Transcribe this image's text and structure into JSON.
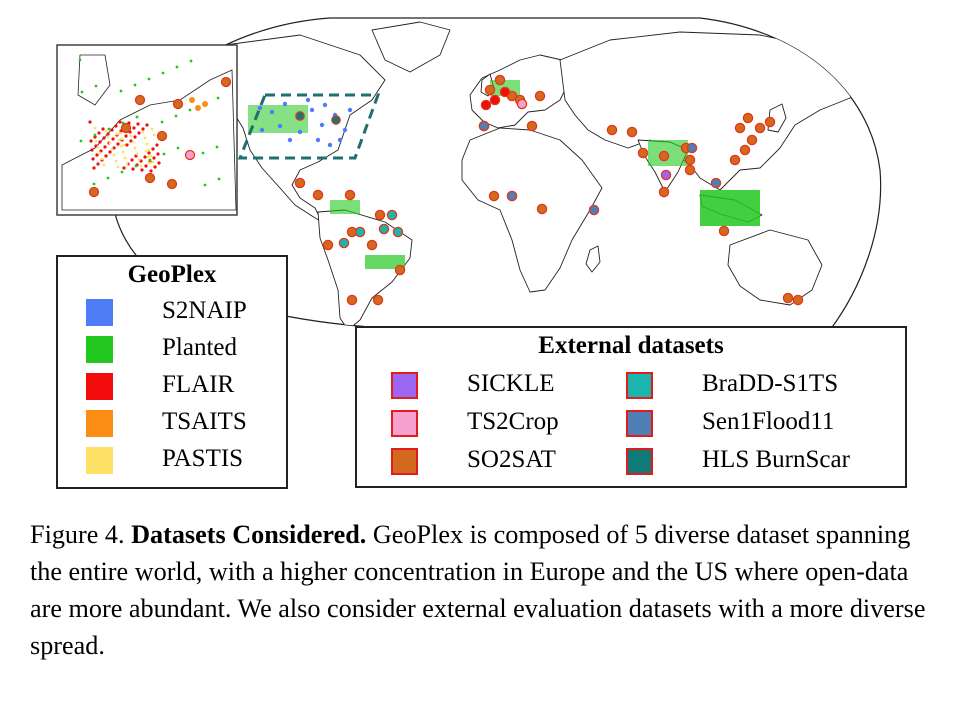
{
  "colors": {
    "ocean": "#ffffff",
    "land": "#ffffff",
    "borders": "#222222",
    "box_outline": "#1f6f6f",
    "marker_edge": "#e2381b"
  },
  "geoplex_legend": {
    "title": "GeoPlex",
    "items": [
      {
        "label": "S2NAIP",
        "color": "#4e7cf6"
      },
      {
        "label": "Planted",
        "color": "#22c81f"
      },
      {
        "label": "FLAIR",
        "color": "#f20c0c"
      },
      {
        "label": "TSAITS",
        "color": "#fb8c14"
      },
      {
        "label": "PASTIS",
        "color": "#fde166"
      }
    ]
  },
  "external_legend": {
    "title": "External datasets",
    "items": [
      {
        "label": "SICKLE",
        "color": "#9a66f2"
      },
      {
        "label": "TS2Crop",
        "color": "#f6a1cd"
      },
      {
        "label": "SO2SAT",
        "color": "#d3691e"
      },
      {
        "label": "BraDD-S1TS",
        "color": "#1bb5ad"
      },
      {
        "label": "Sen1Flood11",
        "color": "#4f7fb4"
      },
      {
        "label": "HLS BurnScar",
        "color": "#0f7a77"
      }
    ]
  },
  "caption": {
    "figure_label": "Figure 4.",
    "bold_title": "Datasets Considered.",
    "body": "GeoPlex is composed of 5 diverse dataset spanning the entire world, with a higher concentration in Europe and the US where open-data are more abundant. We also consider external evaluation datasets with a more diverse spread."
  }
}
